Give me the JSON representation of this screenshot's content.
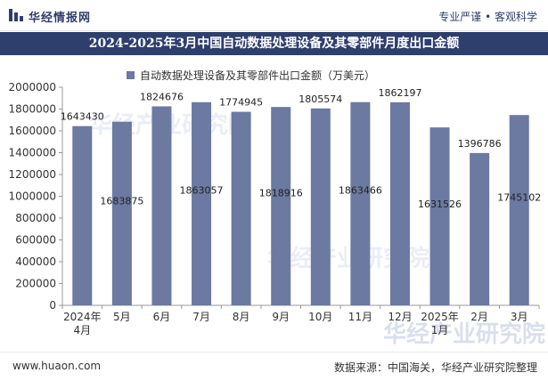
{
  "header": {
    "brand": "华经情报网",
    "tagline": "专业严谨 • 客观科学"
  },
  "title": "2024-2025年3月中国自动数据处理设备及其零部件月度出口金额",
  "footer": {
    "url": "www.huaon.com",
    "source": "数据来源：中国海关，华经产业研究院整理"
  },
  "watermarks": [
    "华经产业研究院",
    "华经产业研究院",
    "华经产业研究院"
  ],
  "colors": {
    "bar": "#6c79a0",
    "title_bg": "#2e3f6e",
    "axis": "#999999"
  },
  "chart_data": {
    "type": "bar",
    "title": "2024-2025年3月中国自动数据处理设备及其零部件月度出口金额",
    "categories": [
      "2024年\n4月",
      "5月",
      "6月",
      "7月",
      "8月",
      "9月",
      "10月",
      "11月",
      "12月",
      "2025年\n1月",
      "2月",
      "3月"
    ],
    "series": [
      {
        "name": "自动数据处理设备及其零部件出口金额（万美元）",
        "values": [
          1643430,
          1683875,
          1824676,
          1863057,
          1774945,
          1818916,
          1805574,
          1863466,
          1862197,
          1631526,
          1396786,
          1745102
        ]
      }
    ],
    "data_labels": [
      "1643430",
      "1683875",
      "1824676",
      "1863057",
      "1774945",
      "1818916",
      "1805574",
      "1863466",
      "1862197",
      "1631526",
      "1396786",
      "1745102"
    ],
    "y_ticks": [
      "0",
      "200000",
      "400000",
      "600000",
      "800000",
      "1000000",
      "1200000",
      "1400000",
      "1600000",
      "1800000",
      "2000000"
    ],
    "ylim": [
      0,
      2000000
    ],
    "legend_position": "top",
    "grid": false
  }
}
